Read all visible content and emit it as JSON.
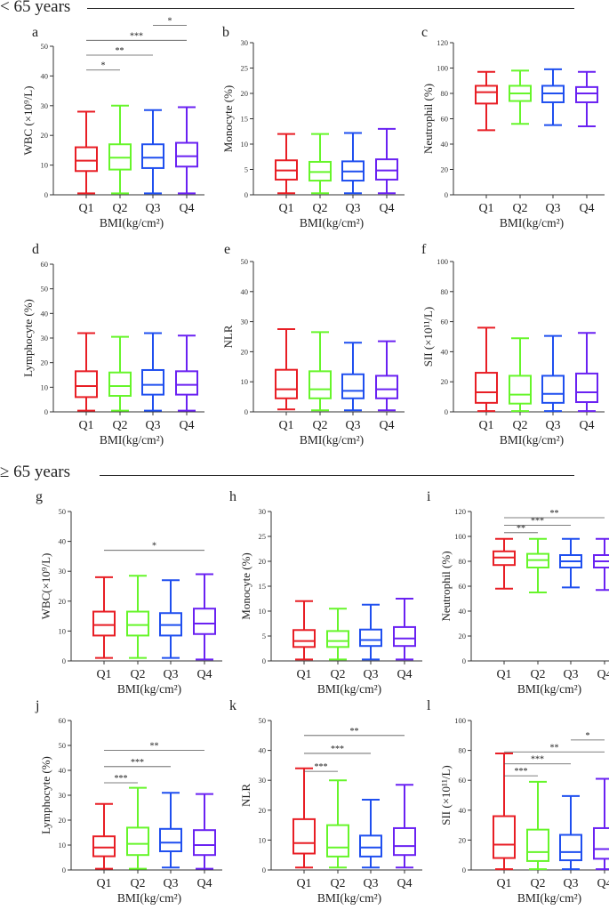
{
  "sections": [
    {
      "title": "< 65 years"
    },
    {
      "title": "≥ 65 years"
    }
  ],
  "colors": {
    "Q1": "#e81e25",
    "Q2": "#66f52a",
    "Q3": "#1f4fef",
    "Q4": "#6a22f2",
    "axis": "#333333"
  },
  "chart_data": [
    {
      "letter": "a",
      "type": "box",
      "ylabel": "WBC (×10⁹/L)",
      "xlabel": "BMI(kg/cm²)",
      "ylim": [
        0,
        50
      ],
      "yticks": [
        0,
        10,
        20,
        30,
        40,
        50
      ],
      "categories": [
        "Q1",
        "Q2",
        "Q3",
        "Q4"
      ],
      "boxes": [
        {
          "min": 0.5,
          "q1": 8,
          "median": 11.5,
          "q3": 16,
          "max": 28
        },
        {
          "min": 0.5,
          "q1": 8.5,
          "median": 12.5,
          "q3": 17,
          "max": 30
        },
        {
          "min": 0.5,
          "q1": 9,
          "median": 12.5,
          "q3": 17,
          "max": 28.5
        },
        {
          "min": 0.5,
          "q1": 9.5,
          "median": 13,
          "q3": 17.5,
          "max": 29.5
        }
      ],
      "significance": [
        {
          "from": "Q1",
          "to": "Q2",
          "y": 42,
          "label": "*"
        },
        {
          "from": "Q1",
          "to": "Q3",
          "y": 47,
          "label": "**"
        },
        {
          "from": "Q1",
          "to": "Q4",
          "y": 52,
          "label": "***"
        },
        {
          "from": "Q3",
          "to": "Q4",
          "y": 57,
          "label": "*"
        }
      ]
    },
    {
      "letter": "b",
      "type": "box",
      "ylabel": "Monocyte (%)",
      "xlabel": "BMI(kg/cm²)",
      "ylim": [
        0,
        30
      ],
      "yticks": [
        0,
        5,
        10,
        15,
        20,
        25,
        30
      ],
      "categories": [
        "Q1",
        "Q2",
        "Q3",
        "Q4"
      ],
      "boxes": [
        {
          "min": 0.3,
          "q1": 3,
          "median": 4.8,
          "q3": 6.8,
          "max": 12
        },
        {
          "min": 0.3,
          "q1": 2.8,
          "median": 4.5,
          "q3": 6.5,
          "max": 12
        },
        {
          "min": 0.3,
          "q1": 2.8,
          "median": 4.6,
          "q3": 6.6,
          "max": 12.2
        },
        {
          "min": 0.3,
          "q1": 3,
          "median": 4.8,
          "q3": 7,
          "max": 13
        }
      ],
      "significance": []
    },
    {
      "letter": "c",
      "type": "box",
      "ylabel": "Neutrophil (%)",
      "xlabel": "BMI(kg/cm²)",
      "ylim": [
        0,
        120
      ],
      "yticks": [
        0,
        20,
        40,
        60,
        80,
        100,
        120
      ],
      "categories": [
        "Q1",
        "Q2",
        "Q3",
        "Q4"
      ],
      "boxes": [
        {
          "min": 51,
          "q1": 72,
          "median": 81,
          "q3": 86,
          "max": 97
        },
        {
          "min": 56,
          "q1": 74,
          "median": 80,
          "q3": 86,
          "max": 98
        },
        {
          "min": 55,
          "q1": 73,
          "median": 80,
          "q3": 86,
          "max": 99
        },
        {
          "min": 54,
          "q1": 73,
          "median": 80,
          "q3": 85,
          "max": 97
        }
      ],
      "significance": []
    },
    {
      "letter": "d",
      "type": "box",
      "ylabel": "Lymphocyte (%)",
      "xlabel": "BMI(kg/cm²)",
      "ylim": [
        0,
        60
      ],
      "yticks": [
        0,
        10,
        20,
        30,
        40,
        50,
        60
      ],
      "categories": [
        "Q1",
        "Q2",
        "Q3",
        "Q4"
      ],
      "boxes": [
        {
          "min": 0.5,
          "q1": 6,
          "median": 10.5,
          "q3": 16.5,
          "max": 32
        },
        {
          "min": 0.5,
          "q1": 6.5,
          "median": 10.5,
          "q3": 16,
          "max": 30.5
        },
        {
          "min": 0.5,
          "q1": 7,
          "median": 11,
          "q3": 17,
          "max": 32
        },
        {
          "min": 0.5,
          "q1": 7,
          "median": 11,
          "q3": 16.5,
          "max": 31
        }
      ],
      "significance": []
    },
    {
      "letter": "e",
      "type": "box",
      "ylabel": "NLR",
      "xlabel": "BMI(kg/cm²)",
      "ylim": [
        0,
        50
      ],
      "yticks": [
        0,
        10,
        20,
        30,
        40,
        50
      ],
      "categories": [
        "Q1",
        "Q2",
        "Q3",
        "Q4"
      ],
      "boxes": [
        {
          "min": 0.8,
          "q1": 4.5,
          "median": 7.5,
          "q3": 14,
          "max": 27.5
        },
        {
          "min": 0.5,
          "q1": 4.5,
          "median": 7.5,
          "q3": 13.5,
          "max": 26.5
        },
        {
          "min": 0.5,
          "q1": 4.5,
          "median": 7,
          "q3": 12.5,
          "max": 23
        },
        {
          "min": 0.5,
          "q1": 4.5,
          "median": 7.5,
          "q3": 12,
          "max": 23.5
        }
      ],
      "significance": []
    },
    {
      "letter": "f",
      "type": "box",
      "ylabel": "SII (×10¹¹/L)",
      "xlabel": "BMI(kg/cm²)",
      "ylim": [
        0,
        100
      ],
      "yticks": [
        0,
        20,
        40,
        60,
        80,
        100
      ],
      "categories": [
        "Q1",
        "Q2",
        "Q3",
        "Q4"
      ],
      "boxes": [
        {
          "min": 0.5,
          "q1": 6,
          "median": 13,
          "q3": 26,
          "max": 56
        },
        {
          "min": 0.5,
          "q1": 5.5,
          "median": 11.5,
          "q3": 24,
          "max": 49
        },
        {
          "min": 0.5,
          "q1": 6,
          "median": 12,
          "q3": 24,
          "max": 50.5
        },
        {
          "min": 0.5,
          "q1": 6.5,
          "median": 13,
          "q3": 25.5,
          "max": 52.5
        }
      ],
      "significance": []
    },
    {
      "letter": "g",
      "type": "box",
      "ylabel": "WBC(×10⁹/L)",
      "xlabel": "BMI(kg/cm²)",
      "ylim": [
        0,
        50
      ],
      "yticks": [
        0,
        10,
        20,
        30,
        40,
        50
      ],
      "categories": [
        "Q1",
        "Q2",
        "Q3",
        "Q4"
      ],
      "boxes": [
        {
          "min": 1,
          "q1": 8.5,
          "median": 12,
          "q3": 16.5,
          "max": 28
        },
        {
          "min": 1,
          "q1": 8.5,
          "median": 12,
          "q3": 16.5,
          "max": 28.5
        },
        {
          "min": 1,
          "q1": 8.5,
          "median": 12,
          "q3": 16,
          "max": 27
        },
        {
          "min": 0.5,
          "q1": 9,
          "median": 12.5,
          "q3": 17.5,
          "max": 29
        }
      ],
      "significance": [
        {
          "from": "Q1",
          "to": "Q4",
          "y": 37,
          "label": "*"
        }
      ]
    },
    {
      "letter": "h",
      "type": "box",
      "ylabel": "Monocyte (%)",
      "xlabel": "BMI(kg/cm²)",
      "ylim": [
        0,
        30
      ],
      "yticks": [
        0,
        5,
        10,
        15,
        20,
        25,
        30
      ],
      "categories": [
        "Q1",
        "Q2",
        "Q3",
        "Q4"
      ],
      "boxes": [
        {
          "min": 0.3,
          "q1": 2.8,
          "median": 4,
          "q3": 6.2,
          "max": 12
        },
        {
          "min": 0.3,
          "q1": 2.8,
          "median": 4,
          "q3": 6,
          "max": 10.5
        },
        {
          "min": 0.3,
          "q1": 3,
          "median": 4.2,
          "q3": 6.3,
          "max": 11.3
        },
        {
          "min": 0.3,
          "q1": 3,
          "median": 4.5,
          "q3": 6.8,
          "max": 12.5
        }
      ],
      "significance": []
    },
    {
      "letter": "i",
      "type": "box",
      "ylabel": "Neutrophil (%)",
      "xlabel": "BMI(kg/cm²)",
      "ylim": [
        0,
        120
      ],
      "yticks": [
        0,
        20,
        40,
        60,
        80,
        100,
        120
      ],
      "categories": [
        "Q1",
        "Q2",
        "Q3",
        "Q4"
      ],
      "boxes": [
        {
          "min": 58,
          "q1": 77,
          "median": 83,
          "q3": 88,
          "max": 98
        },
        {
          "min": 55,
          "q1": 75,
          "median": 81,
          "q3": 86,
          "max": 98
        },
        {
          "min": 59,
          "q1": 75,
          "median": 80,
          "q3": 85,
          "max": 98
        },
        {
          "min": 57,
          "q1": 75,
          "median": 80,
          "q3": 85,
          "max": 98
        }
      ],
      "significance": [
        {
          "from": "Q1",
          "to": "Q2",
          "y": 103,
          "label": "**"
        },
        {
          "from": "Q1",
          "to": "Q3",
          "y": 109,
          "label": "***"
        },
        {
          "from": "Q1",
          "to": "Q4",
          "y": 115,
          "label": "**"
        }
      ]
    },
    {
      "letter": "j",
      "type": "box",
      "ylabel": "Lymphocyte (%)",
      "xlabel": "BMI(kg/cm²)",
      "ylim": [
        0,
        60
      ],
      "yticks": [
        0,
        10,
        20,
        30,
        40,
        50,
        60
      ],
      "categories": [
        "Q1",
        "Q2",
        "Q3",
        "Q4"
      ],
      "boxes": [
        {
          "min": 0.5,
          "q1": 5.5,
          "median": 9,
          "q3": 13.5,
          "max": 26.5
        },
        {
          "min": 0.5,
          "q1": 6,
          "median": 10.5,
          "q3": 17,
          "max": 33
        },
        {
          "min": 1,
          "q1": 7.5,
          "median": 11,
          "q3": 16.5,
          "max": 31
        },
        {
          "min": 0.5,
          "q1": 6,
          "median": 10,
          "q3": 16,
          "max": 30.5
        }
      ],
      "significance": [
        {
          "from": "Q1",
          "to": "Q2",
          "y": 35,
          "label": "***"
        },
        {
          "from": "Q1",
          "to": "Q3",
          "y": 41.5,
          "label": "***"
        },
        {
          "from": "Q1",
          "to": "Q4",
          "y": 48,
          "label": "**"
        }
      ]
    },
    {
      "letter": "k",
      "type": "box",
      "ylabel": "NLR",
      "xlabel": "BMI(kg/cm²)",
      "ylim": [
        0,
        50
      ],
      "yticks": [
        0,
        10,
        20,
        30,
        40,
        50
      ],
      "categories": [
        "Q1",
        "Q2",
        "Q3",
        "Q4"
      ],
      "boxes": [
        {
          "min": 0.8,
          "q1": 5.5,
          "median": 9,
          "q3": 17,
          "max": 34
        },
        {
          "min": 0.8,
          "q1": 4.5,
          "median": 7.5,
          "q3": 15,
          "max": 30
        },
        {
          "min": 0.8,
          "q1": 4.5,
          "median": 7.5,
          "q3": 11.5,
          "max": 23.5
        },
        {
          "min": 0.8,
          "q1": 5,
          "median": 8,
          "q3": 14,
          "max": 28.5
        }
      ],
      "significance": [
        {
          "from": "Q1",
          "to": "Q2",
          "y": 33,
          "label": "***"
        },
        {
          "from": "Q1",
          "to": "Q3",
          "y": 39,
          "label": "***"
        },
        {
          "from": "Q1",
          "to": "Q4",
          "y": 45,
          "label": "**"
        }
      ]
    },
    {
      "letter": "l",
      "type": "box",
      "ylabel": "SII (×10¹¹/L)",
      "xlabel": "BMI(kg/cm²)",
      "ylim": [
        0,
        100
      ],
      "yticks": [
        0,
        20,
        40,
        60,
        80,
        100
      ],
      "categories": [
        "Q1",
        "Q2",
        "Q3",
        "Q4"
      ],
      "boxes": [
        {
          "min": 0.5,
          "q1": 8,
          "median": 17,
          "q3": 36,
          "max": 78
        },
        {
          "min": 0.5,
          "q1": 6,
          "median": 12,
          "q3": 27,
          "max": 59
        },
        {
          "min": 0.5,
          "q1": 6.5,
          "median": 12,
          "q3": 23.5,
          "max": 49.5
        },
        {
          "min": 0.5,
          "q1": 7.5,
          "median": 14,
          "q3": 28,
          "max": 61
        }
      ],
      "significance": [
        {
          "from": "Q1",
          "to": "Q2",
          "y": 63,
          "label": "***"
        },
        {
          "from": "Q1",
          "to": "Q3",
          "y": 71,
          "label": "***"
        },
        {
          "from": "Q1",
          "to": "Q4",
          "y": 79,
          "label": "**"
        },
        {
          "from": "Q3",
          "to": "Q4",
          "y": 87,
          "label": "*"
        }
      ]
    }
  ]
}
